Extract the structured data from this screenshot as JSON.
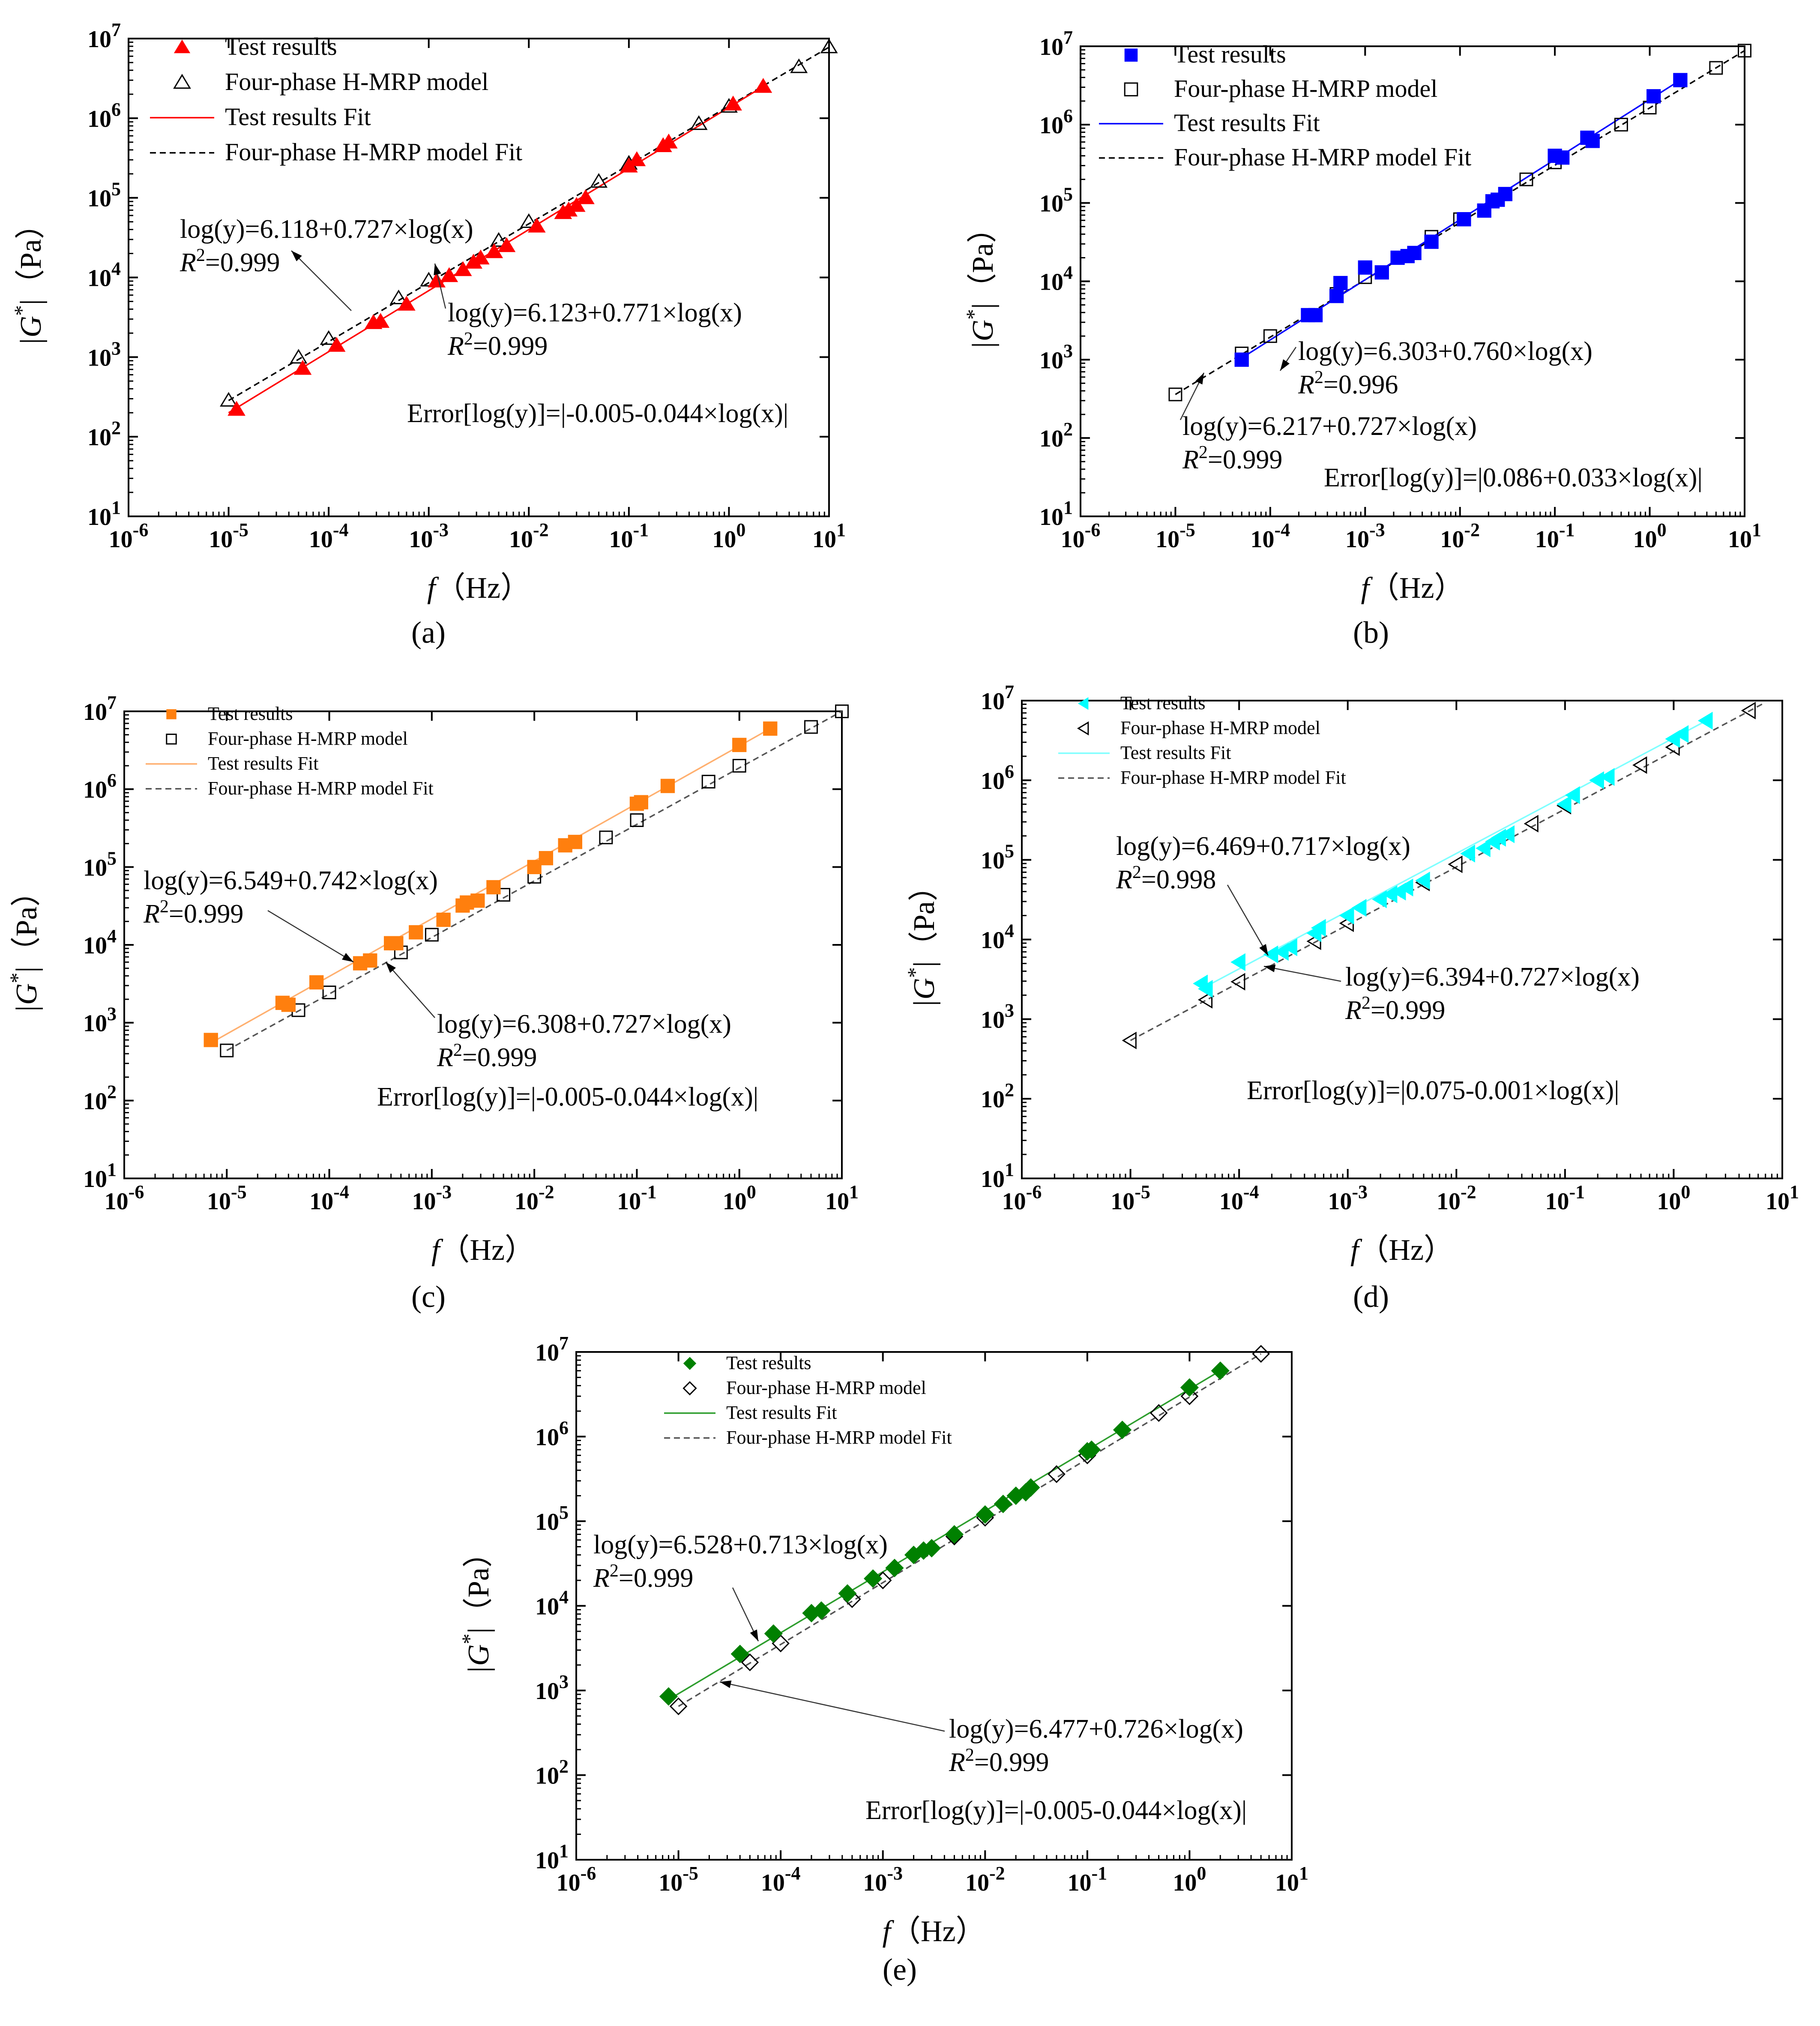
{
  "figure": {
    "ytick_labels": [
      "10",
      "10",
      "10",
      "10",
      "10",
      "10",
      "10"
    ],
    "ytick_exps": [
      "1",
      "2",
      "3",
      "4",
      "5",
      "6",
      "7"
    ],
    "xtick_labels": [
      "10",
      "10",
      "10",
      "10",
      "10",
      "10",
      "10",
      "10"
    ],
    "xtick_exps": [
      "-6",
      "-5",
      "-4",
      "-3",
      "-2",
      "-1",
      "0",
      "1"
    ],
    "ylabel_base": "|G",
    "ylabel_sup": "*",
    "ylabel_tail": "|（Pa）",
    "xlabel_f": "f",
    "xlabel_unit": "（Hz）",
    "r2_prefix": "R",
    "r2_sup": "2",
    "xlim": [
      1e-06,
      10
    ],
    "ylim": [
      10,
      10000000
    ]
  },
  "chart_data": [
    {
      "panel": "(a)",
      "panel_label": "(a)",
      "type": "scatter",
      "xscale": "log",
      "yscale": "log",
      "xlabel": "f（Hz）",
      "ylabel": "|G*|（Pa）",
      "xlim": [
        1e-06,
        10
      ],
      "ylim": [
        10,
        10000000
      ],
      "colors": {
        "test": "#ff0000",
        "model": "#000000",
        "test_fit": "#ff0000",
        "model_fit": "#000000"
      },
      "markers": {
        "test": "triangle-up-filled",
        "model": "triangle-up-open"
      },
      "legend": {
        "position": "top-left",
        "entries": [
          "Test results",
          "Four-phase H-MRP model",
          "Test results Fit",
          "Four-phase H-MRP model Fit"
        ]
      },
      "series": [
        {
          "name": "Test results",
          "x": [
            1.2e-05,
            5.5e-05,
            0.00012,
            0.00028,
            0.00033,
            0.0006,
            0.0012,
            0.0016,
            0.0022,
            0.0028,
            0.0033,
            0.0045,
            0.006,
            0.012,
            0.022,
            0.025,
            0.03,
            0.037,
            0.1,
            0.12,
            0.22,
            0.25,
            1.1,
            2.2
          ],
          "y": [
            220,
            720,
            1400,
            2700,
            2800,
            4600,
            9000,
            10500,
            12500,
            15500,
            17500,
            21000,
            25000,
            44000,
            65000,
            70000,
            80000,
            100000,
            250000,
            300000,
            450000,
            500000,
            1500000,
            2500000
          ]
        },
        {
          "name": "Four-phase H-MRP model",
          "x": [
            1e-05,
            5e-05,
            0.0001,
            0.0005,
            0.001,
            0.005,
            0.01,
            0.05,
            0.1,
            0.5,
            1,
            5,
            10
          ],
          "y": [
            285,
            990,
            1700,
            5500,
            9200,
            29000,
            50000,
            160000,
            270000,
            850000,
            1400000,
            4400000,
            7800000
          ]
        },
        {
          "name": "Test results Fit",
          "x": [
            1e-05,
            2.2
          ],
          "y": [
            200,
            2500000
          ]
        },
        {
          "name": "Four-phase H-MRP model Fit",
          "x": [
            1e-05,
            10
          ],
          "y": [
            285,
            7800000
          ]
        }
      ],
      "annotations": [
        {
          "eq": "log(y)=6.118+0.727×log(x)",
          "r2": "=0.999"
        },
        {
          "eq": "log(y)=6.123+0.771×log(x)",
          "r2": "=0.999"
        },
        {
          "text": "Error[log(y)]=|-0.005-0.044×log(x)|"
        }
      ]
    },
    {
      "panel": "(b)",
      "panel_label": "(b)",
      "type": "scatter",
      "xscale": "log",
      "yscale": "log",
      "xlabel": "f（Hz）",
      "ylabel": "|G*|（Pa）",
      "xlim": [
        1e-06,
        10
      ],
      "ylim": [
        10,
        10000000
      ],
      "colors": {
        "test": "#0000ff",
        "model": "#000000",
        "test_fit": "#0000ff",
        "model_fit": "#000000"
      },
      "markers": {
        "test": "square-filled",
        "model": "square-open"
      },
      "legend": {
        "position": "top-left",
        "entries": [
          "Test results",
          "Four-phase H-MRP model",
          "Test results Fit",
          "Four-phase H-MRP model Fit"
        ]
      },
      "series": [
        {
          "name": "Test results",
          "x": [
            5e-05,
            0.00025,
            0.0003,
            0.0005,
            0.00055,
            0.001,
            0.0015,
            0.0022,
            0.0028,
            0.0033,
            0.005,
            0.011,
            0.018,
            0.022,
            0.025,
            0.03,
            0.1,
            0.12,
            0.22,
            0.25,
            1.1,
            2.1
          ],
          "y": [
            1000,
            3700,
            3700,
            6500,
            9500,
            15000,
            13000,
            20000,
            21000,
            23000,
            32000,
            62000,
            80000,
            105000,
            110000,
            130000,
            400000,
            380000,
            680000,
            620000,
            2300000,
            3700000
          ]
        },
        {
          "name": "Four-phase H-MRP model",
          "x": [
            1e-05,
            5e-05,
            0.0001,
            0.0005,
            0.001,
            0.005,
            0.01,
            0.05,
            0.1,
            0.5,
            1,
            5,
            10
          ],
          "y": [
            360,
            1200,
            2000,
            6900,
            11300,
            37000,
            62000,
            200000,
            330000,
            1000000,
            1650000,
            5300000,
            8800000
          ]
        },
        {
          "name": "Test results Fit",
          "x": [
            5e-05,
            2.1
          ],
          "y": [
            1050,
            3700000
          ]
        },
        {
          "name": "Four-phase H-MRP model Fit",
          "x": [
            1e-05,
            10
          ],
          "y": [
            360,
            8800000
          ]
        }
      ],
      "annotations": [
        {
          "eq": "log(y)=6.303+0.760×log(x)",
          "r2": "=0.996"
        },
        {
          "eq": "log(y)=6.217+0.727×log(x)",
          "r2": "=0.999"
        },
        {
          "text": "Error[log(y)]=|0.086+0.033×log(x)|"
        }
      ]
    },
    {
      "panel": "(c)",
      "panel_label": "(c)",
      "type": "scatter",
      "xscale": "log",
      "yscale": "log",
      "xlabel": "f（Hz）",
      "ylabel": "|G*|（Pa）",
      "xlim": [
        1e-06,
        10
      ],
      "ylim": [
        10,
        10000000
      ],
      "colors": {
        "test": "#ff7f0e",
        "model": "#000000",
        "test_fit": "#ffb070",
        "model_fit": "#555555"
      },
      "markers": {
        "test": "square-filled",
        "model": "square-open"
      },
      "legend": {
        "position": "top-left",
        "entries": [
          "Test results",
          "Four-phase H-MRP model",
          "Test results Fit",
          "Four-phase H-MRP model Fit"
        ]
      },
      "series": [
        {
          "name": "Test results",
          "x": [
            7e-06,
            3.5e-05,
            4e-05,
            7.5e-05,
            0.0002,
            0.00025,
            0.0004,
            0.00045,
            0.0007,
            0.0013,
            0.002,
            0.0022,
            0.0028,
            0.004,
            0.01,
            0.013,
            0.02,
            0.025,
            0.1,
            0.11,
            0.2,
            1,
            2
          ],
          "y": [
            600,
            1800,
            1700,
            3300,
            5800,
            6300,
            10500,
            10500,
            14500,
            21000,
            32000,
            35000,
            37000,
            55000,
            100000,
            130000,
            190000,
            210000,
            650000,
            680000,
            1100000,
            3700000,
            6000000
          ]
        },
        {
          "name": "Four-phase H-MRP model",
          "x": [
            1e-05,
            5e-05,
            0.0001,
            0.0005,
            0.001,
            0.005,
            0.01,
            0.05,
            0.1,
            0.5,
            1,
            5,
            10
          ],
          "y": [
            440,
            1450,
            2450,
            8000,
            13500,
            44000,
            75000,
            240000,
            400000,
            1250000,
            2000000,
            6300000,
            10000000
          ]
        },
        {
          "name": "Test results Fit",
          "x": [
            7e-06,
            2
          ],
          "y": [
            550,
            6000000
          ]
        },
        {
          "name": "Four-phase H-MRP model Fit",
          "x": [
            1e-05,
            10
          ],
          "y": [
            440,
            10000000
          ]
        }
      ],
      "annotations": [
        {
          "eq": "log(y)=6.549+0.742×log(x)",
          "r2": "=0.999"
        },
        {
          "eq": "log(y)=6.308+0.727×log(x)",
          "r2": "=0.999"
        },
        {
          "text": "Error[log(y)]=|-0.005-0.044×log(x)|"
        }
      ]
    },
    {
      "panel": "(d)",
      "panel_label": "(d)",
      "type": "scatter",
      "xscale": "log",
      "yscale": "log",
      "xlabel": "f（Hz）",
      "ylabel": "|G*|（Pa）",
      "xlim": [
        1e-06,
        10
      ],
      "ylim": [
        10,
        10000000
      ],
      "colors": {
        "test": "#00ffff",
        "model": "#000000",
        "test_fit": "#7fffff",
        "model_fit": "#555555"
      },
      "markers": {
        "test": "triangle-left-filled",
        "model": "triangle-left-open"
      },
      "legend": {
        "position": "top-left",
        "entries": [
          "Test results",
          "Four-phase H-MRP model",
          "Test results Fit",
          "Four-phase H-MRP model Fit"
        ]
      },
      "series": [
        {
          "name": "Test results",
          "x": [
            4.5e-05,
            5e-05,
            0.0001,
            0.0002,
            0.00025,
            0.0003,
            0.0005,
            0.00055,
            0.001,
            0.0013,
            0.002,
            0.0025,
            0.003,
            0.0035,
            0.005,
            0.013,
            0.018,
            0.022,
            0.025,
            0.03,
            0.1,
            0.12,
            0.2,
            0.25,
            1,
            1.2,
            2
          ],
          "y": [
            2800,
            2400,
            5200,
            6500,
            7000,
            8000,
            12000,
            14000,
            20000,
            25000,
            32000,
            37000,
            40000,
            45000,
            55000,
            120000,
            140000,
            170000,
            190000,
            210000,
            500000,
            650000,
            1000000,
            1100000,
            3300000,
            3800000,
            5600000
          ]
        },
        {
          "name": "Four-phase H-MRP model",
          "x": [
            1e-05,
            5e-05,
            0.0001,
            0.0005,
            0.001,
            0.005,
            0.01,
            0.05,
            0.1,
            0.5,
            1,
            5
          ],
          "y": [
            540,
            1750,
            2950,
            9500,
            16000,
            52000,
            88000,
            285000,
            480000,
            1550000,
            2600000,
            7500000
          ]
        },
        {
          "name": "Test results Fit",
          "x": [
            4.5e-05,
            2
          ],
          "y": [
            2400,
            5600000
          ]
        },
        {
          "name": "Four-phase H-MRP model Fit",
          "x": [
            1e-05,
            7
          ],
          "y": [
            540,
            9500000
          ]
        }
      ],
      "annotations": [
        {
          "eq": "log(y)=6.469+0.717×log(x)",
          "r2": "=0.998"
        },
        {
          "eq": "log(y)=6.394+0.727×log(x)",
          "r2": "=0.999"
        },
        {
          "text": "Error[log(y)]=|0.075-0.001×log(x)|"
        }
      ]
    },
    {
      "panel": "(e)",
      "panel_label": "(e)",
      "type": "scatter",
      "xscale": "log",
      "yscale": "log",
      "xlabel": "f（Hz）",
      "ylabel": "|G*|（Pa）",
      "xlim": [
        1e-06,
        10
      ],
      "ylim": [
        10,
        10000000
      ],
      "colors": {
        "test": "#008000",
        "model": "#000000",
        "test_fit": "#2e9e2e",
        "model_fit": "#555555"
      },
      "markers": {
        "test": "diamond-filled",
        "model": "diamond-open"
      },
      "legend": {
        "position": "top-left",
        "entries": [
          "Test results",
          "Four-phase H-MRP model",
          "Test results Fit",
          "Four-phase H-MRP model Fit"
        ]
      },
      "series": [
        {
          "name": "Test results",
          "x": [
            8e-06,
            4e-05,
            8.5e-05,
            0.0002,
            0.00025,
            0.00045,
            0.0008,
            0.0013,
            0.002,
            0.0025,
            0.003,
            0.005,
            0.01,
            0.015,
            0.02,
            0.025,
            0.028,
            0.1,
            0.11,
            0.22,
            1,
            2
          ],
          "y": [
            850,
            2700,
            4700,
            8200,
            8800,
            14000,
            21000,
            28000,
            40000,
            45000,
            48000,
            70000,
            120000,
            160000,
            200000,
            220000,
            250000,
            670000,
            700000,
            1200000,
            3800000,
            6000000
          ]
        },
        {
          "name": "Four-phase H-MRP model",
          "x": [
            1e-05,
            5e-05,
            0.0001,
            0.0005,
            0.001,
            0.005,
            0.01,
            0.05,
            0.1,
            0.5,
            1,
            5
          ],
          "y": [
            650,
            2150,
            3600,
            12000,
            20000,
            66000,
            110000,
            360000,
            600000,
            1900000,
            3000000,
            9500000
          ]
        },
        {
          "name": "Test results Fit",
          "x": [
            8e-06,
            2
          ],
          "y": [
            780,
            6000000
          ]
        },
        {
          "name": "Four-phase H-MRP model Fit",
          "x": [
            1e-05,
            5
          ],
          "y": [
            650,
            9500000
          ]
        }
      ],
      "annotations": [
        {
          "eq": "log(y)=6.528+0.713×log(x)",
          "r2": "=0.999"
        },
        {
          "eq": "log(y)=6.477+0.726×log(x)",
          "r2": "=0.999"
        },
        {
          "text": "Error[log(y)]=|-0.005-0.044×log(x)|"
        }
      ]
    }
  ]
}
